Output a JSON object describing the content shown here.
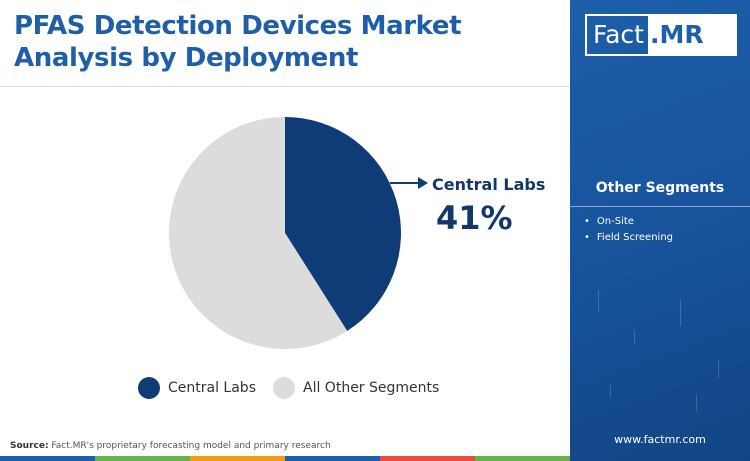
{
  "header": {
    "title_line1": "PFAS Detection Devices Market",
    "title_line2": "Analysis by Deployment"
  },
  "chart_data": {
    "type": "pie",
    "title": "PFAS Detection Devices Market Analysis by Deployment",
    "slices": [
      {
        "label": "Central Labs",
        "value": 41,
        "color": "#0f3c77"
      },
      {
        "label": "All Other Segments",
        "value": 59,
        "color": "#dcdcdc"
      }
    ],
    "callout": {
      "label": "Central Labs",
      "value_text": "41%"
    },
    "legend_position": "bottom"
  },
  "legend": {
    "items": [
      {
        "label": "Central Labs",
        "color": "#0f3c77"
      },
      {
        "label": "All Other Segments",
        "color": "#dcdcdc"
      }
    ]
  },
  "footer": {
    "source_label": "Source:",
    "source_text": " Fact.MR's proprietary forecasting model and primary research",
    "bar_colors": [
      "#1d5fab",
      "#6ab04c",
      "#f39c12",
      "#1d5fab",
      "#e74c3c",
      "#6ab04c"
    ]
  },
  "side_panel": {
    "logo_left": "Fact",
    "logo_right": ".MR",
    "segments_title": "Other Segments",
    "segments": [
      "On-Site",
      "Field Screening"
    ],
    "website": "www.factmr.com"
  }
}
